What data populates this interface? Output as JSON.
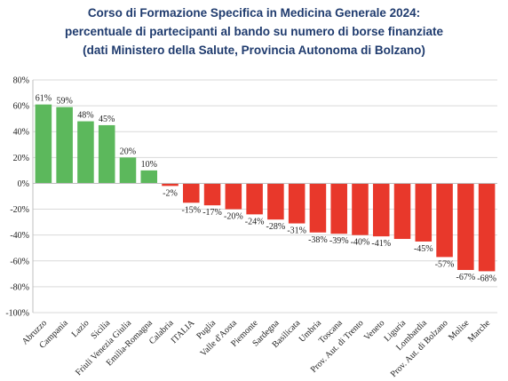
{
  "chart_data": {
    "type": "bar",
    "title_lines": [
      "Corso di Formazione Specifica in Medicina Generale 2024:",
      "percentuale di partecipanti al bando su numero di borse finanziate",
      "(dati Ministero della Salute, Provincia Autonoma di Bolzano)"
    ],
    "categories": [
      "Abruzzo",
      "Campania",
      "Lazio",
      "Sicilia",
      "Friuli Venezia Giulia",
      "Emilia-Romagna",
      "Calabria",
      "ITALIA",
      "Puglia",
      "Valle d'Aosta",
      "Piemonte",
      "Sardegna",
      "Basilicata",
      "Umbria",
      "Toscana",
      "Prov. Aut. di Trento",
      "Veneto",
      "Liguria",
      "Lombardia",
      "Prov. Aut. di Bolzano",
      "Molise",
      "Marche"
    ],
    "values": [
      61,
      59,
      48,
      45,
      20,
      10,
      -2,
      -15,
      -17,
      -20,
      -24,
      -28,
      -31,
      -38,
      -39,
      -40,
      -41,
      -43,
      -45,
      -57,
      -67,
      -68
    ],
    "data_labels": [
      "61%",
      "59%",
      "48%",
      "45%",
      "20%",
      "10%",
      "-2%",
      "-15%",
      "-17%",
      "-20%",
      "-24%",
      "-28%",
      "-31%",
      "-38%",
      "-39%",
      "-40%",
      "-41%",
      "",
      "-45%",
      "-57%",
      "-67%",
      "-68%"
    ],
    "ylim": [
      -100,
      80
    ],
    "yticks": [
      -100,
      -80,
      -60,
      -40,
      -20,
      0,
      20,
      40,
      60,
      80
    ],
    "ytick_labels": [
      "-100%",
      "-80%",
      "-60%",
      "-40%",
      "-20%",
      "0%",
      "20%",
      "40%",
      "60%",
      "80%"
    ],
    "grid": true,
    "colors": {
      "positive": "#5cb85c",
      "negative": "#e8382b"
    }
  }
}
